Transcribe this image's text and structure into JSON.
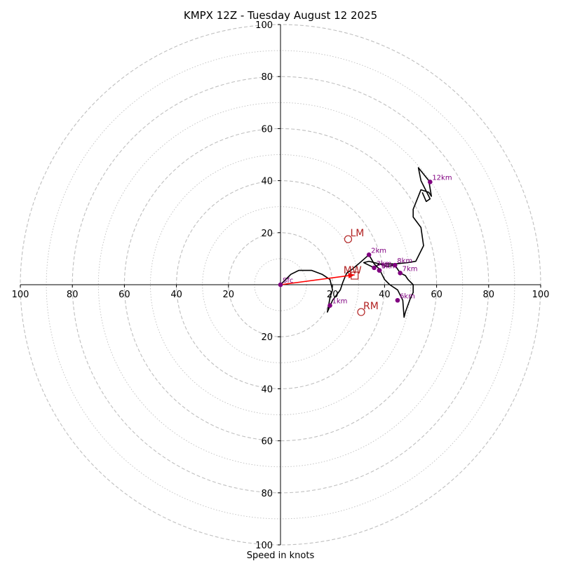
{
  "chart_data": {
    "type": "hodograph",
    "title": "KMPX 12Z - Tuesday August 12 2025",
    "xlabel": "Speed in knots",
    "units": "knots",
    "range": [
      -100,
      100
    ],
    "ring_major_step": 20,
    "ring_minor_step": 10,
    "x_tick_labels": [
      "100",
      "80",
      "60",
      "40",
      "20",
      "20",
      "40",
      "60",
      "80",
      "100"
    ],
    "y_tick_labels": [
      "100",
      "80",
      "60",
      "40",
      "20",
      "20",
      "40",
      "60",
      "80",
      "100"
    ],
    "trace_color": "#000000",
    "height_marker_color": "#800080",
    "motion_color": "#b22222",
    "shear_vector_color": "#ff0000",
    "ring_color": "#bfbfbf",
    "trace": [
      [
        0,
        0
      ],
      [
        2,
        2
      ],
      [
        4,
        4
      ],
      [
        7,
        5.5
      ],
      [
        12,
        5.5
      ],
      [
        16,
        4
      ],
      [
        19,
        2
      ],
      [
        20,
        -2
      ],
      [
        19,
        -5
      ],
      [
        18.5,
        -8
      ],
      [
        18,
        -10.5
      ],
      [
        20,
        -6
      ],
      [
        23,
        -2
      ],
      [
        24,
        1
      ],
      [
        25,
        3.5
      ],
      [
        25.5,
        4.5
      ],
      [
        27,
        5.5
      ],
      [
        30,
        8
      ],
      [
        34,
        11.5
      ],
      [
        36,
        8
      ],
      [
        38,
        6
      ],
      [
        39,
        4
      ],
      [
        40,
        2
      ],
      [
        42,
        0
      ],
      [
        45,
        -2
      ],
      [
        47,
        -6
      ],
      [
        47.5,
        -12.5
      ],
      [
        48,
        -10.5
      ],
      [
        50,
        -5
      ],
      [
        51,
        -3
      ],
      [
        51,
        0
      ],
      [
        49,
        2
      ],
      [
        48,
        3.5
      ],
      [
        46,
        4.5
      ],
      [
        44,
        7.5
      ],
      [
        41,
        7
      ],
      [
        38,
        8
      ],
      [
        36,
        6.5
      ],
      [
        34,
        7.5
      ],
      [
        32,
        8.5
      ],
      [
        34,
        9
      ],
      [
        38,
        8
      ],
      [
        44,
        8
      ],
      [
        49,
        8.5
      ],
      [
        52,
        9
      ],
      [
        55,
        15
      ],
      [
        54,
        22
      ],
      [
        51,
        26
      ],
      [
        51,
        29
      ],
      [
        53,
        34
      ],
      [
        54,
        36.5
      ],
      [
        57,
        35.5
      ],
      [
        58,
        34
      ],
      [
        57,
        40
      ],
      [
        53,
        45
      ],
      [
        54,
        40
      ],
      [
        57,
        34
      ],
      [
        57.5,
        33
      ],
      [
        56,
        32
      ],
      [
        54.5,
        35.5
      ]
    ],
    "height_markers": [
      {
        "label": "Sfc",
        "x": 0,
        "y": 0
      },
      {
        "label": "1km",
        "x": 19,
        "y": -8
      },
      {
        "label": "2km",
        "x": 34,
        "y": 11.5
      },
      {
        "label": "3km",
        "x": 36,
        "y": 6.5
      },
      {
        "label": "4km",
        "x": 38,
        "y": 5.5
      },
      {
        "label": "5km",
        "x": 38,
        "y": 5.5
      },
      {
        "label": "6km",
        "x": 45,
        "y": -6
      },
      {
        "label": "7km",
        "x": 46,
        "y": 4.5
      },
      {
        "label": "8km",
        "x": 44,
        "y": 7.5
      },
      {
        "label": "12km",
        "x": 57.5,
        "y": 39.5
      }
    ],
    "storm_motions": [
      {
        "label": "LM",
        "x": 26,
        "y": 17.5,
        "marker": "circle"
      },
      {
        "label": "RM",
        "x": 31,
        "y": -10.5,
        "marker": "circle"
      },
      {
        "label": "MW",
        "x": 28.5,
        "y": 3.5,
        "marker": "square"
      }
    ],
    "shear_vector": {
      "from": [
        0,
        0
      ],
      "to": [
        28.5,
        3.8
      ]
    }
  }
}
